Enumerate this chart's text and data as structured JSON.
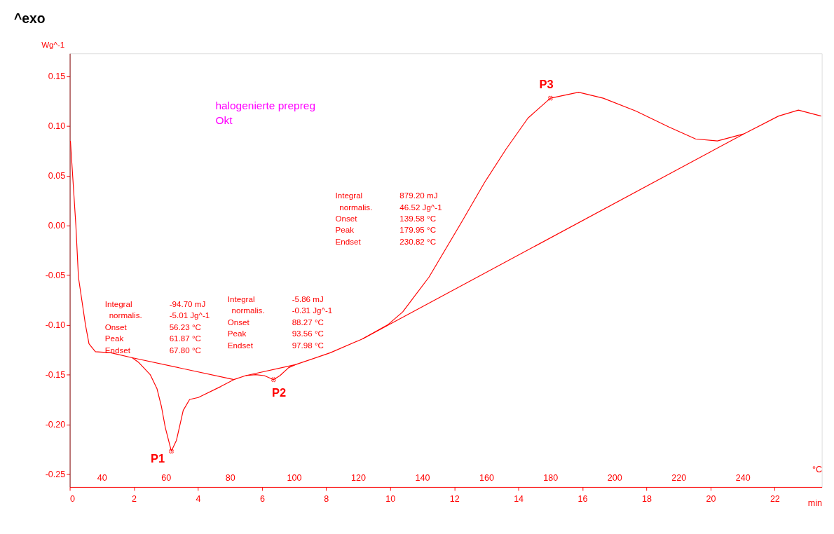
{
  "chart_data": {
    "type": "line",
    "title": "^exo",
    "ylabel": "Wg^-1",
    "xlabel": "min",
    "x2label": "°C",
    "xlim": [
      0,
      23.47
    ],
    "xticks": [
      0,
      2,
      4,
      6,
      8,
      10,
      12,
      14,
      16,
      18,
      20,
      22
    ],
    "x2lim": [
      30,
      264.7
    ],
    "x2ticks": [
      40,
      60,
      80,
      100,
      120,
      140,
      160,
      180,
      200,
      220,
      240
    ],
    "ylim": [
      -0.263,
      0.173
    ],
    "yticks": [
      {
        "value": -0.25,
        "label": "-0.25"
      },
      {
        "value": -0.2,
        "label": "-0.20"
      },
      {
        "value": -0.15,
        "label": "-0.15"
      },
      {
        "value": -0.1,
        "label": "-0.10"
      },
      {
        "value": -0.05,
        "label": "-0.05"
      },
      {
        "value": 0,
        "label": "0.00"
      },
      {
        "value": 0.05,
        "label": "0.05"
      },
      {
        "value": 0.1,
        "label": "0.10"
      },
      {
        "value": 0.15,
        "label": "0.15"
      }
    ],
    "grid": false,
    "marker": "none",
    "line_style": "solid",
    "series": [
      {
        "color": "#ff0000",
        "x": [
          0.02,
          0.1,
          0.19,
          0.27,
          0.49,
          0.6,
          0.8,
          1.28,
          1.95,
          2.16,
          2.51,
          2.72,
          2.86,
          2.98,
          3.17,
          3.33,
          3.54,
          3.74,
          4.01,
          4.71,
          5.12,
          5.49,
          5.8,
          6.07,
          6.36,
          6.56,
          6.83,
          7.04,
          7.86,
          8.13,
          9.14,
          9.92,
          10.39,
          10.74,
          11.21,
          12.24,
          12.94,
          13.62,
          14.3,
          15.0,
          15.88,
          16.65,
          17.67,
          18.7,
          19.53,
          20.21,
          21.03,
          22.12,
          22.74,
          23.45
        ],
        "values": [
          0.085,
          0.045,
          0.0,
          -0.052,
          -0.1,
          -0.119,
          -0.127,
          -0.128,
          -0.133,
          -0.138,
          -0.15,
          -0.164,
          -0.182,
          -0.203,
          -0.227,
          -0.216,
          -0.186,
          -0.175,
          -0.173,
          -0.162,
          -0.155,
          -0.151,
          -0.15,
          -0.151,
          -0.155,
          -0.151,
          -0.143,
          -0.14,
          -0.131,
          -0.128,
          -0.114,
          -0.1,
          -0.087,
          -0.072,
          -0.052,
          0.004,
          0.043,
          0.077,
          0.108,
          0.128,
          0.134,
          0.128,
          0.115,
          0.099,
          0.087,
          0.085,
          0.092,
          0.11,
          0.116,
          0.11
        ]
      },
      {
        "color": "#ff0000",
        "x": [
          1.95,
          5.12
        ],
        "values": [
          -0.133,
          -0.155
        ]
      },
      {
        "color": "#ff0000",
        "x": [
          5.49,
          7.04
        ],
        "values": [
          -0.151,
          -0.14
        ]
      },
      {
        "color": "#ff0000",
        "x": [
          9.14,
          21.03
        ],
        "values": [
          -0.114,
          0.092
        ]
      }
    ],
    "annotations": [
      "halogenierte prepreg\nOkt",
      "Integral      -94.70 mJ\n  normalis.  -5.01 Jg^-1\nOnset         56.23 °C\nPeak          61.87 °C\nEndset        67.80 °C",
      "Integral      -5.86 mJ\n  normalis.  -0.31 Jg^-1\nOnset         88.27 °C\nPeak          93.56 °C\nEndset        97.98 °C",
      "Integral      879.20 mJ\n  normalis.  46.52 Jg^-1\nOnset         139.58 °C\nPeak          179.95 °C\nEndset        230.82 °C",
      {
        "text": "P1",
        "x": 3.17,
        "y": -0.227
      },
      {
        "text": "P2",
        "x": 6.36,
        "y": -0.155
      },
      {
        "text": "P3",
        "x": 15.0,
        "y": 0.128
      }
    ]
  }
}
